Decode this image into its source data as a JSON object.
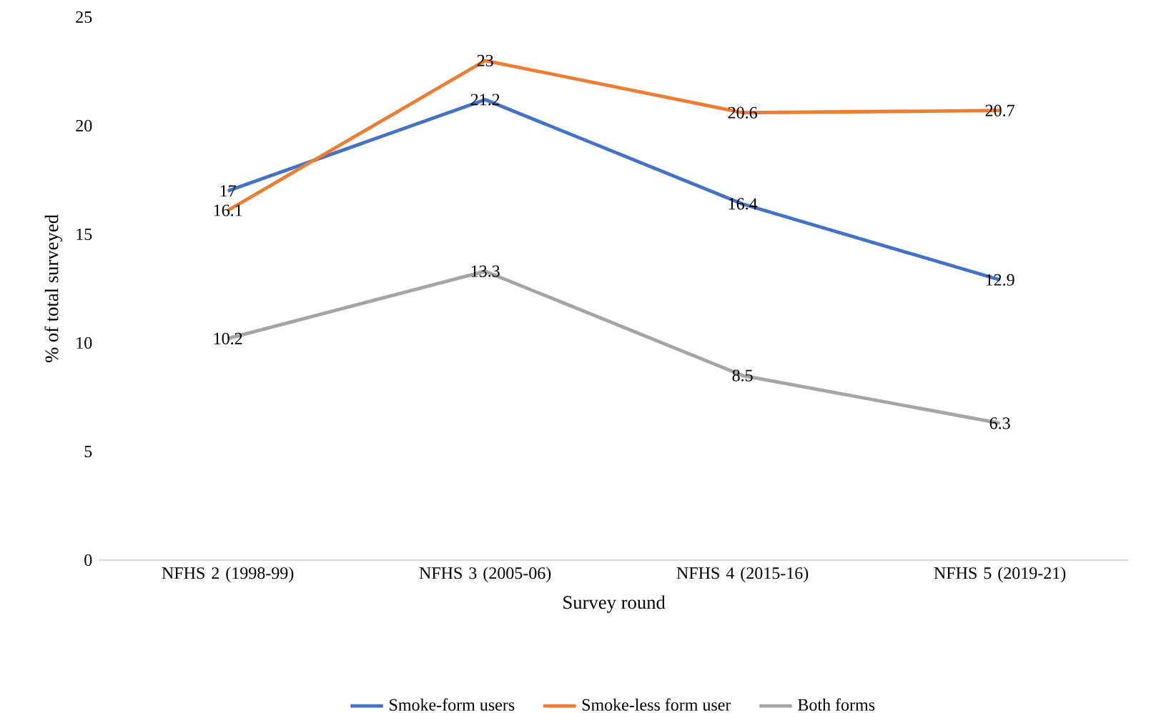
{
  "chart_data": {
    "type": "line",
    "xlabel": "Survey round",
    "ylabel": "% of total surveyed",
    "categories": [
      "NFHS 2 (1998-99)",
      "NFHS 3 (2005-06)",
      "NFHS 4 (2015-16)",
      "NFHS 5 (2019-21)"
    ],
    "series": [
      {
        "name": "Smoke-form users",
        "color": "#4472c4",
        "values": [
          17,
          21.2,
          16.4,
          12.9
        ]
      },
      {
        "name": "Smoke-less form user",
        "color": "#ed7d31",
        "values": [
          16.1,
          23,
          20.6,
          20.7
        ]
      },
      {
        "name": "Both forms",
        "color": "#a5a5a5",
        "values": [
          10.2,
          13.3,
          8.5,
          6.3
        ]
      }
    ],
    "ylim": [
      0,
      25
    ],
    "yticks": [
      0,
      5,
      10,
      15,
      20,
      25
    ],
    "data_labels": true,
    "legend": "bottom",
    "marker": "none",
    "line_style": "solid",
    "grid": false
  }
}
